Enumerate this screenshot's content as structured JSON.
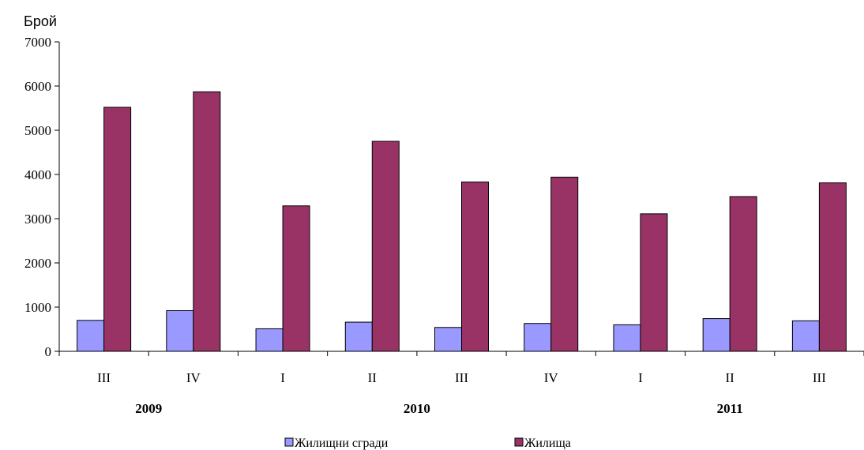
{
  "chart_data": {
    "type": "bar",
    "ylabel": "Брой",
    "xlabel": "",
    "ylim": [
      0,
      7000
    ],
    "yticks": [
      0,
      1000,
      2000,
      3000,
      4000,
      5000,
      6000,
      7000
    ],
    "categories": [
      "III",
      "IV",
      "I",
      "II",
      "III",
      "IV",
      "I",
      "II",
      "III"
    ],
    "year_groups": [
      {
        "label": "2009",
        "start": 0,
        "end": 1
      },
      {
        "label": "2010",
        "start": 2,
        "end": 5
      },
      {
        "label": "2011",
        "start": 6,
        "end": 8
      }
    ],
    "series": [
      {
        "name": "Жилищни сгради",
        "color": "#9999ff",
        "values": [
          700,
          920,
          510,
          660,
          540,
          630,
          600,
          740,
          690
        ]
      },
      {
        "name": "Жилища",
        "color": "#993366",
        "values": [
          5520,
          5870,
          3290,
          4750,
          3830,
          3940,
          3110,
          3500,
          3810
        ]
      }
    ],
    "legend_position": "bottom",
    "grid": false
  }
}
